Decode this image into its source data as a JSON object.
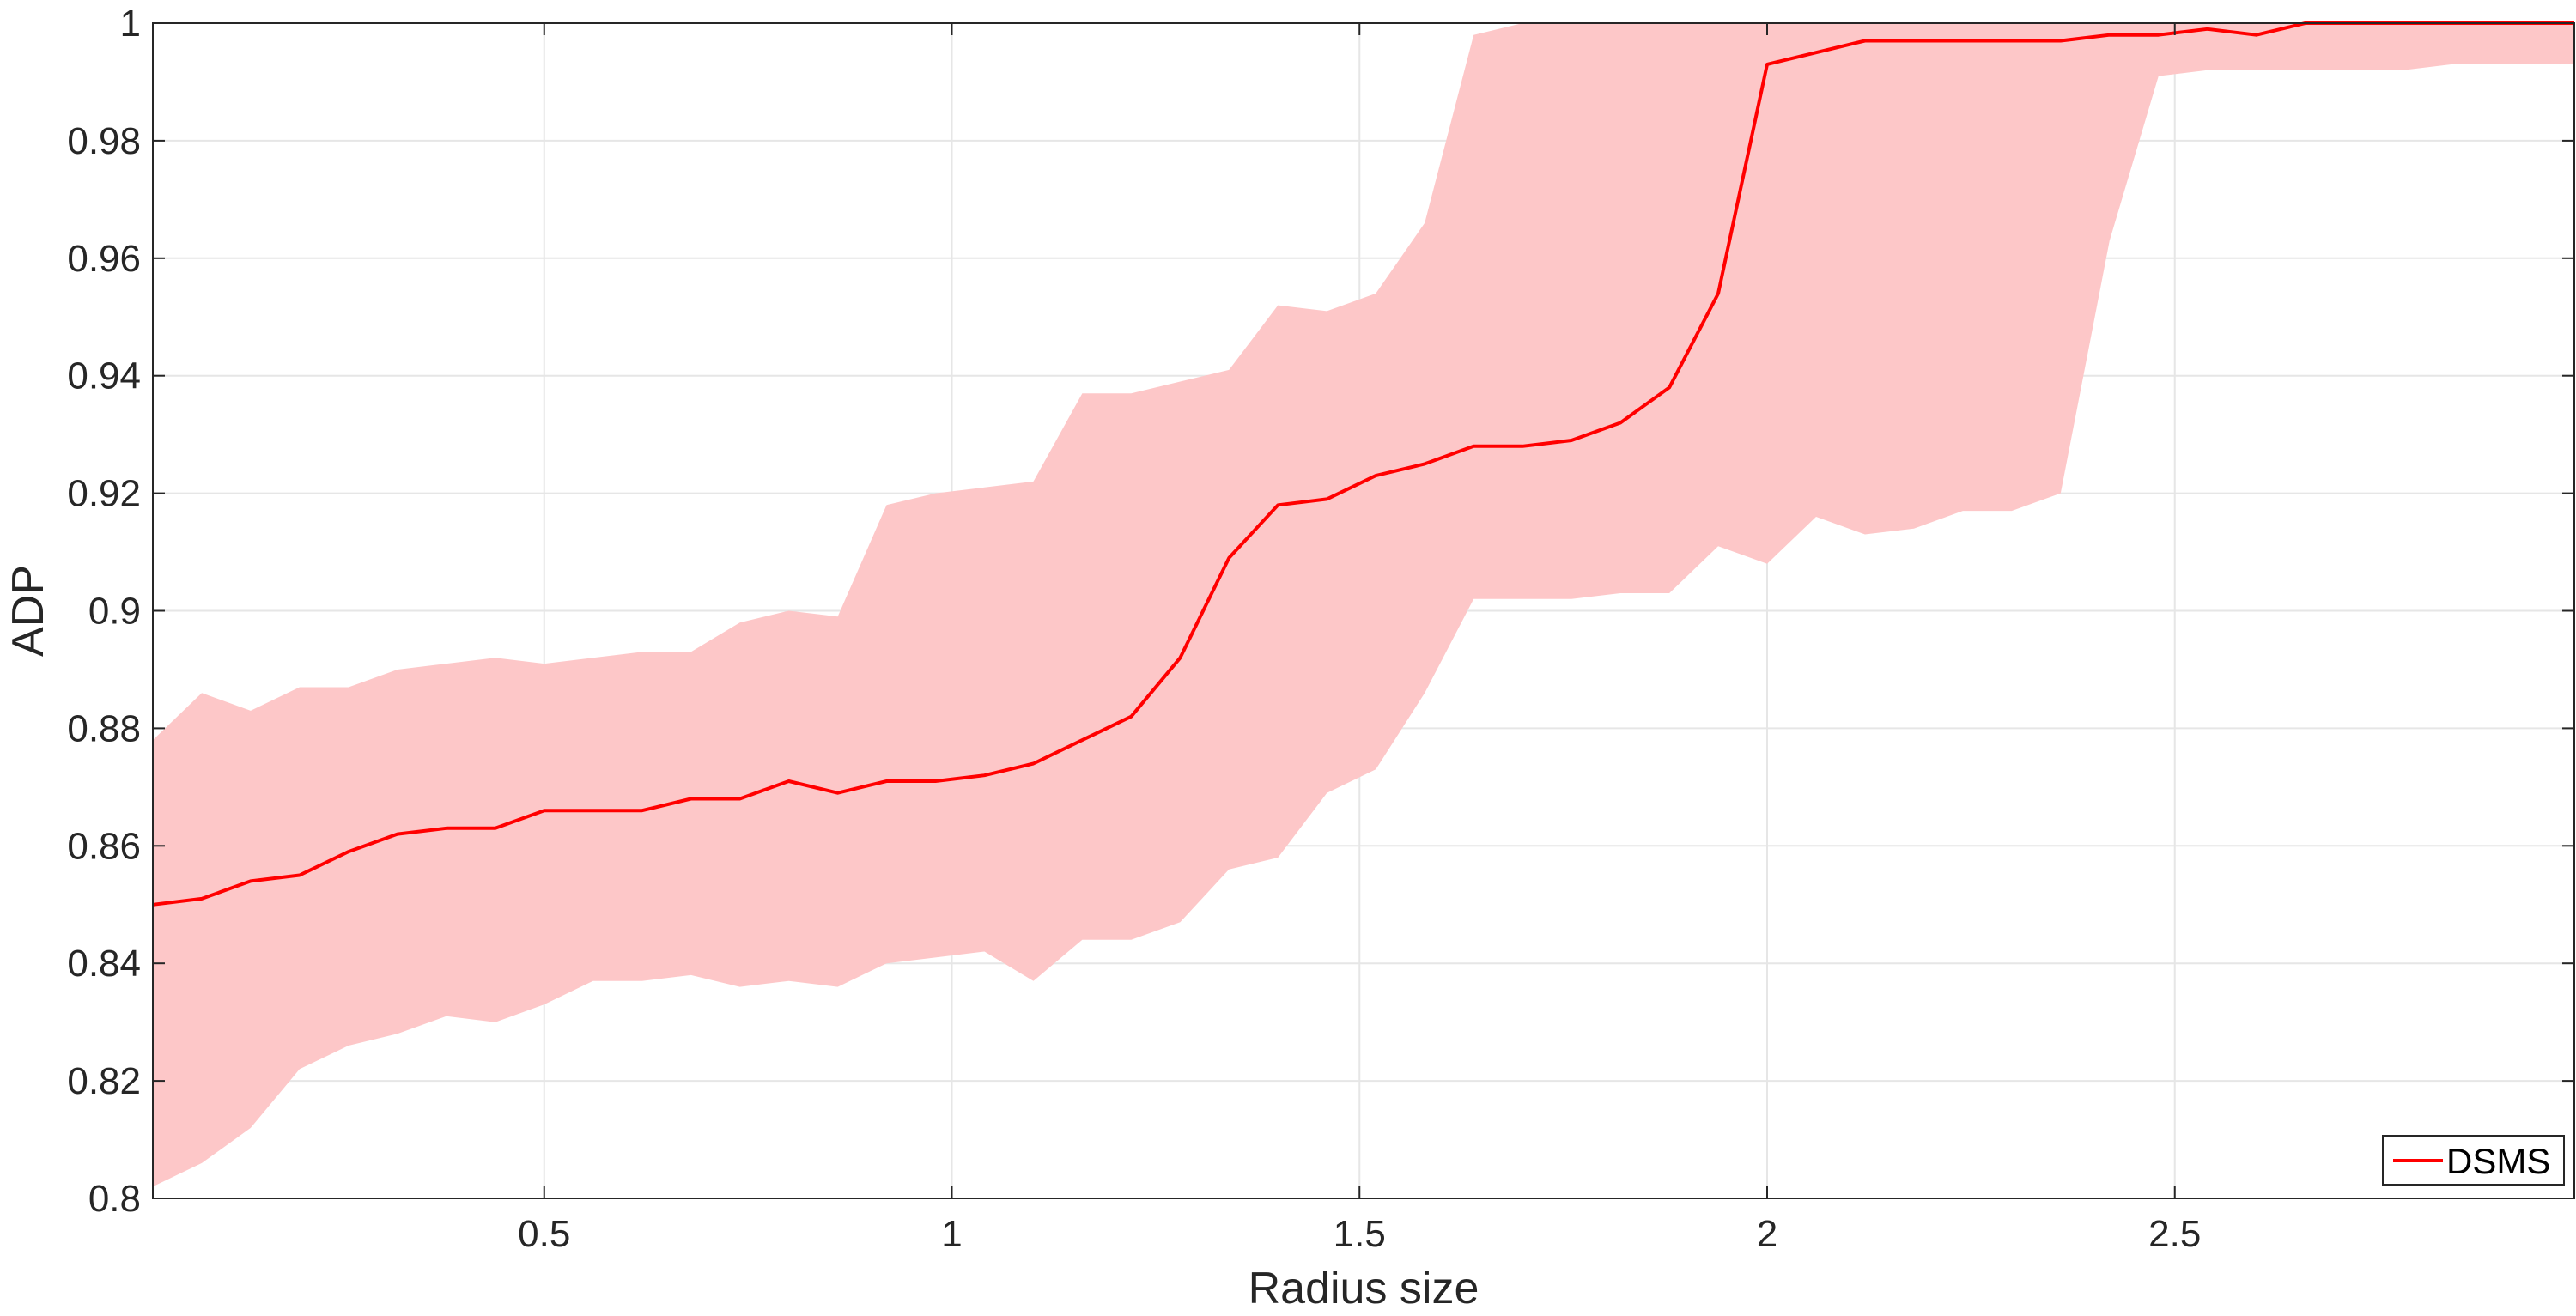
{
  "chart_data": {
    "type": "line",
    "xlabel": "Radius size",
    "ylabel": "ADP",
    "xlim": [
      0.02,
      2.99
    ],
    "ylim": [
      0.8,
      1.0
    ],
    "xticks": [
      0.5,
      1,
      1.5,
      2,
      2.5
    ],
    "xtick_labels": [
      "0.5",
      "1",
      "1.5",
      "2",
      "2.5"
    ],
    "yticks": [
      0.8,
      0.82,
      0.84,
      0.86,
      0.88,
      0.9,
      0.92,
      0.94,
      0.96,
      0.98,
      1.0
    ],
    "ytick_labels": [
      "0.8",
      "0.82",
      "0.84",
      "0.86",
      "0.88",
      "0.9",
      "0.92",
      "0.94",
      "0.96",
      "0.98",
      "1"
    ],
    "grid": true,
    "legend_position": "bottom-right",
    "colors": {
      "line": "#ff0000",
      "band": "#fdc7c8",
      "grid": "#e6e6e6",
      "axis": "#262626"
    },
    "series": [
      {
        "name": "DSMS",
        "x": [
          0.02,
          0.08,
          0.14,
          0.2,
          0.26,
          0.32,
          0.38,
          0.44,
          0.5,
          0.56,
          0.62,
          0.68,
          0.74,
          0.8,
          0.86,
          0.92,
          0.98,
          1.04,
          1.1,
          1.16,
          1.22,
          1.28,
          1.34,
          1.4,
          1.46,
          1.52,
          1.58,
          1.64,
          1.7,
          1.76,
          1.82,
          1.88,
          1.94,
          2.0,
          2.06,
          2.12,
          2.18,
          2.24,
          2.3,
          2.36,
          2.42,
          2.48,
          2.54,
          2.6,
          2.66,
          2.72,
          2.78,
          2.84,
          2.9,
          2.96,
          2.99
        ],
        "y": [
          0.85,
          0.851,
          0.854,
          0.855,
          0.859,
          0.862,
          0.863,
          0.863,
          0.866,
          0.866,
          0.866,
          0.868,
          0.868,
          0.871,
          0.869,
          0.871,
          0.871,
          0.872,
          0.874,
          0.878,
          0.882,
          0.892,
          0.909,
          0.918,
          0.919,
          0.923,
          0.925,
          0.928,
          0.928,
          0.929,
          0.932,
          0.938,
          0.954,
          0.993,
          0.995,
          0.997,
          0.997,
          0.997,
          0.997,
          0.997,
          0.998,
          0.998,
          0.999,
          0.998,
          1.0,
          1.0,
          1.0,
          1.0,
          1.0,
          1.0,
          1.0
        ],
        "lower": [
          0.802,
          0.806,
          0.812,
          0.822,
          0.826,
          0.828,
          0.831,
          0.83,
          0.833,
          0.837,
          0.837,
          0.838,
          0.836,
          0.837,
          0.836,
          0.84,
          0.841,
          0.842,
          0.837,
          0.844,
          0.844,
          0.847,
          0.856,
          0.858,
          0.869,
          0.873,
          0.886,
          0.902,
          0.902,
          0.902,
          0.903,
          0.903,
          0.911,
          0.908,
          0.916,
          0.913,
          0.914,
          0.917,
          0.917,
          0.92,
          0.963,
          0.991,
          0.992,
          0.992,
          0.992,
          0.992,
          0.992,
          0.993,
          0.993,
          0.993,
          0.993
        ],
        "upper": [
          0.878,
          0.886,
          0.883,
          0.887,
          0.887,
          0.89,
          0.891,
          0.892,
          0.891,
          0.892,
          0.893,
          0.893,
          0.898,
          0.9,
          0.899,
          0.918,
          0.92,
          0.921,
          0.922,
          0.937,
          0.937,
          0.939,
          0.941,
          0.952,
          0.951,
          0.954,
          0.966,
          0.998,
          1.0,
          1.0,
          1.0,
          1.0,
          1.0,
          1.0,
          1.0,
          1.0,
          1.0,
          1.0,
          1.0,
          1.0,
          1.0,
          1.0,
          1.0,
          1.0,
          1.0,
          1.0,
          1.0,
          1.0,
          1.0,
          1.0,
          1.0
        ]
      }
    ]
  }
}
